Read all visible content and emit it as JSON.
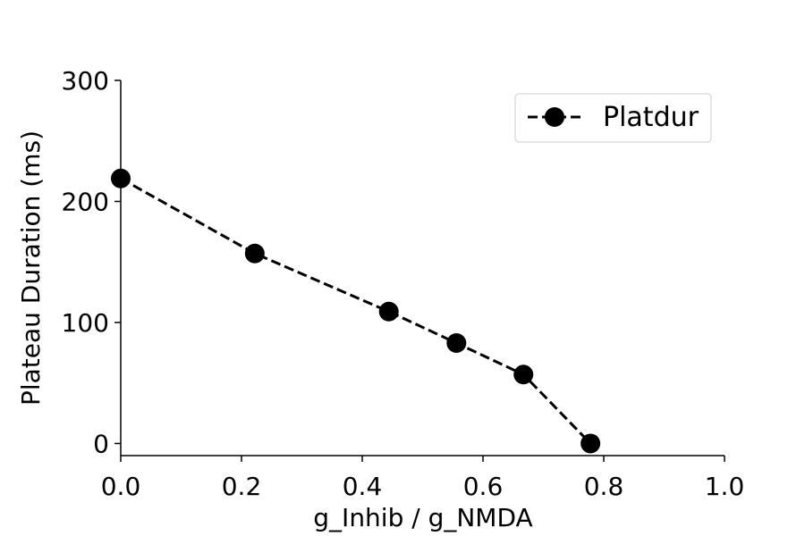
{
  "chart_data": {
    "type": "line",
    "title": "",
    "xlabel": "g_Inhib / g_NMDA",
    "ylabel": "Plateau Duration (ms)",
    "xlim": [
      0.0,
      1.0
    ],
    "ylim": [
      -10,
      300
    ],
    "xticks": [
      0.0,
      0.2,
      0.4,
      0.6,
      0.8,
      1.0
    ],
    "xtick_labels": [
      "0.0",
      "0.2",
      "0.4",
      "0.6",
      "0.8",
      "1.0"
    ],
    "yticks": [
      0,
      100,
      200,
      300
    ],
    "ytick_labels": [
      "0",
      "100",
      "200",
      "300"
    ],
    "grid": false,
    "legend_position": "top-right",
    "series": [
      {
        "name": "Platdur",
        "color": "#000000",
        "line_style": "dashed",
        "marker": "circle",
        "x": [
          0.0,
          0.222,
          0.444,
          0.556,
          0.667,
          0.778
        ],
        "y": [
          219,
          157,
          109,
          83,
          57,
          0
        ]
      }
    ]
  }
}
